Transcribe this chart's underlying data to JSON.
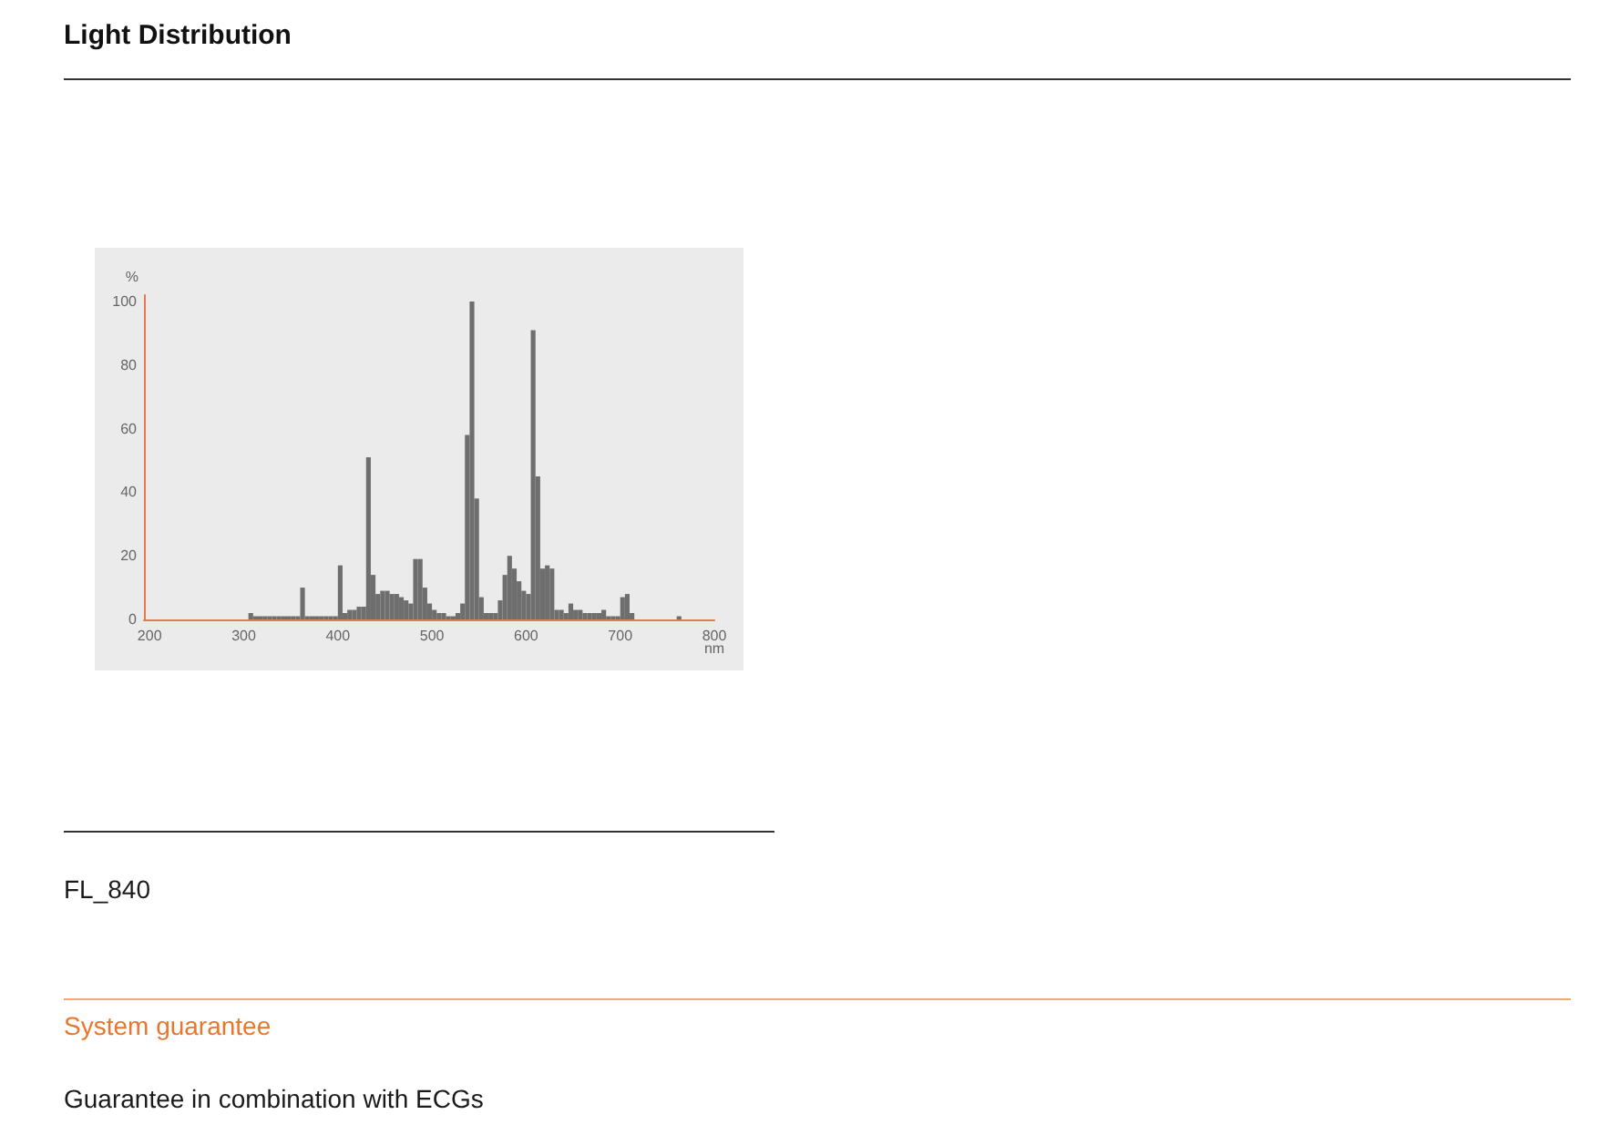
{
  "chart_data": {
    "type": "histogram",
    "title": "Light Distribution",
    "xlabel": "nm",
    "ylabel": "%",
    "bins": [
      305,
      310,
      315,
      320,
      325,
      330,
      335,
      340,
      345,
      350,
      355,
      360,
      365,
      370,
      375,
      380,
      385,
      390,
      395,
      400,
      405,
      410,
      415,
      420,
      425,
      430,
      435,
      440,
      445,
      450,
      455,
      460,
      465,
      470,
      475,
      480,
      485,
      490,
      495,
      500,
      505,
      510,
      515,
      520,
      525,
      530,
      535,
      540,
      545,
      550,
      555,
      560,
      565,
      570,
      575,
      580,
      585,
      590,
      595,
      600,
      605,
      610,
      615,
      620,
      625,
      630,
      635,
      640,
      645,
      650,
      655,
      660,
      665,
      670,
      675,
      680,
      685,
      690,
      695,
      700,
      705,
      710,
      715,
      720,
      725,
      730,
      735,
      740,
      745,
      750,
      755,
      760,
      765
    ],
    "values": [
      2,
      1,
      1,
      1,
      1,
      1,
      1,
      1,
      1,
      1,
      1,
      10,
      1,
      1,
      1,
      1,
      1,
      1,
      1,
      17,
      2,
      3,
      3,
      4,
      4,
      51,
      14,
      8,
      9,
      9,
      8,
      8,
      7,
      6,
      5,
      19,
      19,
      10,
      5,
      3,
      2,
      2,
      1,
      1,
      2,
      5,
      58,
      100,
      38,
      7,
      2,
      2,
      2,
      6,
      14,
      20,
      16,
      12,
      9,
      8,
      91,
      45,
      16,
      17,
      16,
      3,
      3,
      2,
      5,
      3,
      3,
      2,
      2,
      2,
      2,
      3,
      1,
      1,
      1,
      7,
      8,
      2,
      null,
      null,
      null,
      null,
      null,
      null,
      null,
      null,
      null,
      1
    ],
    "color": "#6e6e6e",
    "xlim": [
      194,
      800
    ],
    "xticks": [
      200,
      300,
      400,
      500,
      600,
      700,
      800
    ],
    "ylim": [
      0,
      102
    ],
    "yticks": [
      0,
      20,
      40,
      60,
      80,
      100
    ],
    "annotations": [
      "FL_840",
      "System guarantee",
      "Guarantee in combination with ECGs"
    ]
  }
}
